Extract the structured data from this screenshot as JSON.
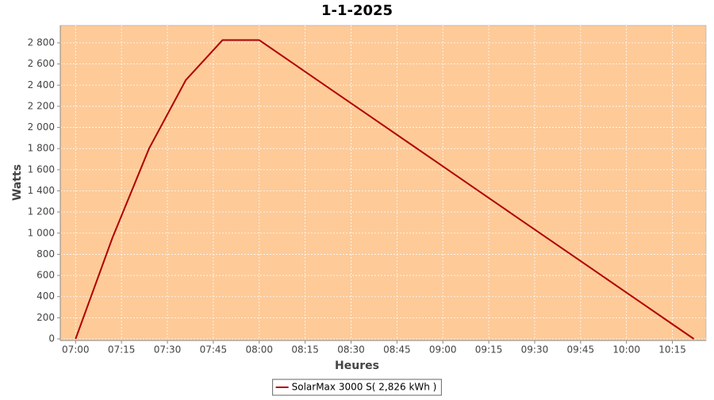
{
  "chart_data": {
    "type": "line",
    "title": "1-1-2025",
    "x_label": "Heures",
    "y_label": "Watts",
    "x": [
      "07:00",
      "07:12",
      "07:24",
      "07:36",
      "07:48",
      "08:00",
      "08:12",
      "08:24",
      "08:36",
      "08:48",
      "09:00",
      "09:12",
      "09:24",
      "09:36",
      "09:48",
      "10:00",
      "10:12",
      "10:22"
    ],
    "series": [
      {
        "name": "SolarMax 3000 S( 2,826 kWh )",
        "color": "#b00000",
        "values": [
          0,
          953,
          1800,
          2447,
          2826,
          2826,
          2587,
          2348,
          2110,
          1871,
          1632,
          1393,
          1154,
          915,
          677,
          438,
          199,
          0
        ]
      }
    ],
    "xlim": [
      "06:55",
      "10:26"
    ],
    "xticks": [
      "07:00",
      "07:15",
      "07:30",
      "07:45",
      "08:00",
      "08:15",
      "08:30",
      "08:45",
      "09:00",
      "09:15",
      "09:30",
      "09:45",
      "10:00",
      "10:15"
    ],
    "ylim": [
      -15,
      2965
    ],
    "yticks": [
      0,
      200,
      400,
      600,
      800,
      {
        "value": 1000,
        "label": "1 000"
      },
      {
        "value": 1200,
        "label": "1 200"
      },
      {
        "value": 1400,
        "label": "1 400"
      },
      {
        "value": 1600,
        "label": "1 600"
      },
      {
        "value": 1800,
        "label": "1 800"
      },
      {
        "value": 2000,
        "label": "2 000"
      },
      {
        "value": 2200,
        "label": "2 200"
      },
      {
        "value": 2400,
        "label": "2 400"
      },
      {
        "value": 2600,
        "label": "2 600"
      },
      {
        "value": 2800,
        "label": "2 800"
      }
    ],
    "grid": true,
    "legend": "bottom"
  }
}
